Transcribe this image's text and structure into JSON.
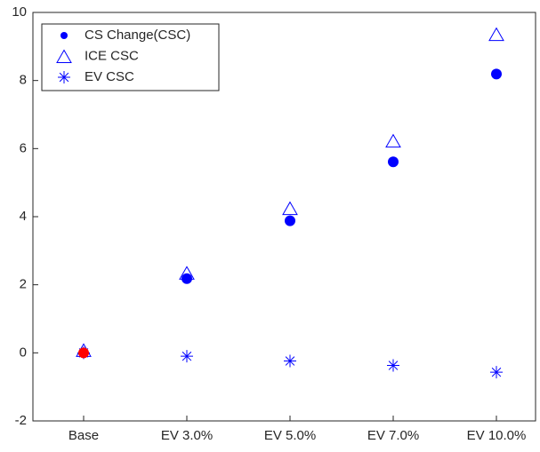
{
  "chart_data": {
    "type": "scatter",
    "categories": [
      "Base",
      "EV 3.0%",
      "EV 5.0%",
      "EV 7.0%",
      "EV 10.0%"
    ],
    "series": [
      {
        "name": "CS Change(CSC)",
        "color": "#0000ff",
        "marker": "dot",
        "colors": [
          "#ff0000",
          "#0000ff",
          "#0000ff",
          "#0000ff",
          "#0000ff"
        ],
        "values": [
          0,
          2.18,
          3.88,
          5.61,
          8.19
        ]
      },
      {
        "name": "ICE CSC",
        "color": "#0000ff",
        "marker": "triangle",
        "values": [
          0.05,
          2.32,
          4.22,
          6.2,
          9.33
        ]
      },
      {
        "name": "EV CSC",
        "color": "#0000ff",
        "marker": "asterisk",
        "values": [
          0,
          -0.1,
          -0.24,
          -0.37,
          -0.57
        ]
      }
    ],
    "ylim": [
      -2,
      10
    ],
    "yticks": [
      -2,
      0,
      2,
      4,
      6,
      8,
      10
    ],
    "grid": false,
    "legend": "upper left"
  }
}
